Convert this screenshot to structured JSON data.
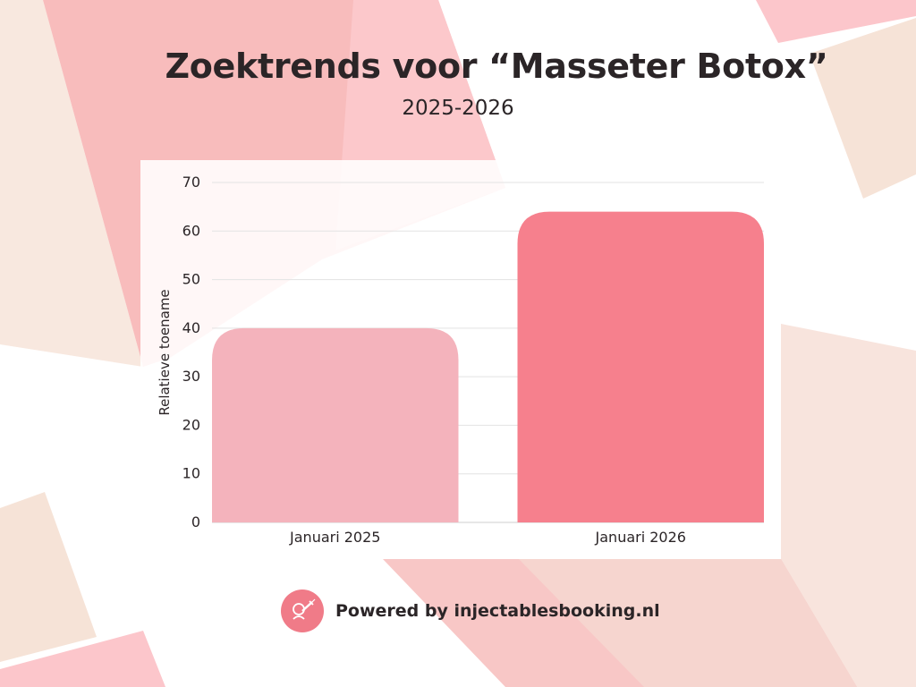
{
  "chart_data": {
    "type": "bar",
    "title": "Zoektrends voor “Masseter Botox”",
    "subtitle": "2025-2026",
    "categories": [
      "Januari 2025",
      "Januari 2026"
    ],
    "values": [
      40,
      64
    ],
    "bar_colors": [
      "#f4b3bc",
      "#f6808d"
    ],
    "ylabel": "Relatieve toename",
    "xlabel": "",
    "ylim": [
      0,
      70
    ],
    "yticks": [
      0,
      10,
      20,
      30,
      40,
      50,
      60,
      70
    ],
    "grid": true,
    "legend": "none"
  },
  "footer": {
    "text": "Powered by injectablesbooking.nl",
    "logo_icon": "syringe-icon",
    "logo_color": "#f07b88"
  },
  "colors": {
    "text": "#2b2527",
    "grid": "#e3e3e3",
    "background": "#ffffff"
  }
}
